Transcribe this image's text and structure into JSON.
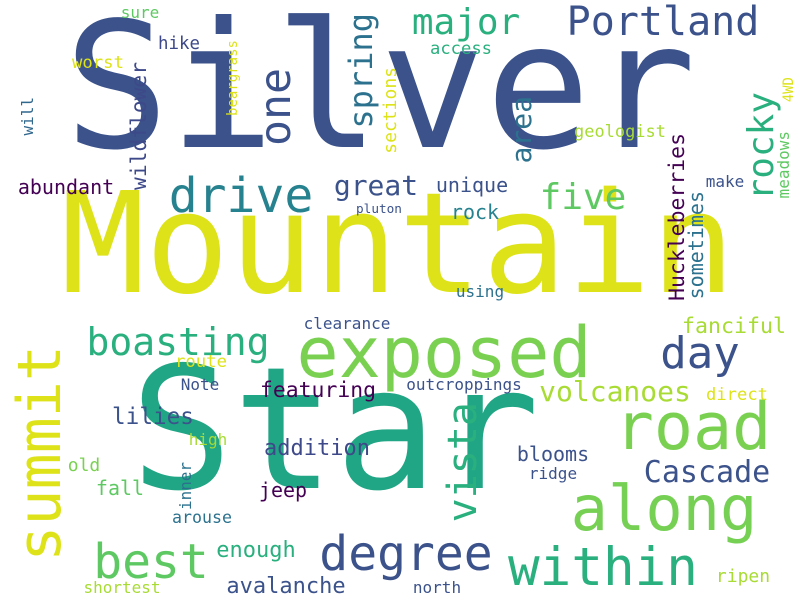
{
  "words": [
    {
      "text": "Silver",
      "color": "#3b528b",
      "orientation": "horizontal"
    },
    {
      "text": "Mountain",
      "color": "#dde318",
      "orientation": "horizontal"
    },
    {
      "text": "Star",
      "color": "#21a685",
      "orientation": "horizontal"
    },
    {
      "text": "exposed",
      "color": "#7ad151",
      "orientation": "horizontal"
    },
    {
      "text": "road",
      "color": "#7ad151",
      "orientation": "horizontal"
    },
    {
      "text": "along",
      "color": "#75d054",
      "orientation": "horizontal"
    },
    {
      "text": "summit",
      "color": "#dde318",
      "orientation": "vertical"
    },
    {
      "text": "Portland",
      "color": "#3b528b",
      "orientation": "horizontal"
    },
    {
      "text": "drive",
      "color": "#26828e",
      "orientation": "horizontal"
    },
    {
      "text": "one",
      "color": "#3b528b",
      "orientation": "vertical"
    },
    {
      "text": "major",
      "color": "#2ab07f",
      "orientation": "horizontal"
    },
    {
      "text": "five",
      "color": "#5ec962",
      "orientation": "horizontal"
    },
    {
      "text": "rocky",
      "color": "#2ab07f",
      "orientation": "vertical"
    },
    {
      "text": "day",
      "color": "#3b528b",
      "orientation": "horizontal"
    },
    {
      "text": "boasting",
      "color": "#2ab07f",
      "orientation": "horizontal"
    },
    {
      "text": "best",
      "color": "#5ec962",
      "orientation": "horizontal"
    },
    {
      "text": "degree",
      "color": "#3b528b",
      "orientation": "horizontal"
    },
    {
      "text": "within",
      "color": "#2ab07f",
      "orientation": "horizontal"
    },
    {
      "text": "Cascade",
      "color": "#3b528b",
      "orientation": "horizontal"
    },
    {
      "text": "vista",
      "color": "#2ab07f",
      "orientation": "vertical"
    },
    {
      "text": "volcanoes",
      "color": "#a8db34",
      "orientation": "horizontal"
    },
    {
      "text": "area",
      "color": "#2c728e",
      "orientation": "vertical"
    },
    {
      "text": "spring",
      "color": "#2c728e",
      "orientation": "vertical"
    },
    {
      "text": "great",
      "color": "#3b528b",
      "orientation": "horizontal"
    },
    {
      "text": "wildflower",
      "color": "#3e4989",
      "orientation": "vertical"
    },
    {
      "text": "Huckleberries",
      "color": "#440154",
      "orientation": "vertical"
    },
    {
      "text": "unique",
      "color": "#3b528b",
      "orientation": "horizontal"
    },
    {
      "text": "rock",
      "color": "#26828e",
      "orientation": "horizontal"
    },
    {
      "text": "abundant",
      "color": "#440154",
      "orientation": "horizontal"
    },
    {
      "text": "pluton",
      "color": "#3b528b",
      "orientation": "horizontal"
    },
    {
      "text": "sometimes",
      "color": "#2c728e",
      "orientation": "vertical"
    },
    {
      "text": "make",
      "color": "#3b528b",
      "orientation": "horizontal"
    },
    {
      "text": "meadows",
      "color": "#5ec962",
      "orientation": "vertical"
    },
    {
      "text": "4WD",
      "color": "#dde318",
      "orientation": "vertical"
    },
    {
      "text": "geologist",
      "color": "#a8db34",
      "orientation": "horizontal"
    },
    {
      "text": "sections",
      "color": "#dde318",
      "orientation": "vertical"
    },
    {
      "text": "beargrass",
      "color": "#dde318",
      "orientation": "vertical"
    },
    {
      "text": "access",
      "color": "#2ab07f",
      "orientation": "horizontal"
    },
    {
      "text": "hike",
      "color": "#3e4989",
      "orientation": "horizontal"
    },
    {
      "text": "sure",
      "color": "#5ec962",
      "orientation": "horizontal"
    },
    {
      "text": "worst",
      "color": "#dde318",
      "orientation": "horizontal"
    },
    {
      "text": "will",
      "color": "#31688e",
      "orientation": "vertical"
    },
    {
      "text": "using",
      "color": "#2c728e",
      "orientation": "horizontal"
    },
    {
      "text": "clearance",
      "color": "#3b528b",
      "orientation": "horizontal"
    },
    {
      "text": "fanciful",
      "color": "#a8db34",
      "orientation": "horizontal"
    },
    {
      "text": "featuring",
      "color": "#440154",
      "orientation": "horizontal"
    },
    {
      "text": "route",
      "color": "#dde318",
      "orientation": "horizontal"
    },
    {
      "text": "Note",
      "color": "#3b528b",
      "orientation": "horizontal"
    },
    {
      "text": "outcroppings",
      "color": "#3b528b",
      "orientation": "horizontal"
    },
    {
      "text": "direct",
      "color": "#dde318",
      "orientation": "horizontal"
    },
    {
      "text": "lilies",
      "color": "#3b528b",
      "orientation": "horizontal"
    },
    {
      "text": "high",
      "color": "#a8db34",
      "orientation": "horizontal"
    },
    {
      "text": "addition",
      "color": "#3e4989",
      "orientation": "horizontal"
    },
    {
      "text": "blooms",
      "color": "#3b528b",
      "orientation": "horizontal"
    },
    {
      "text": "old",
      "color": "#7ad151",
      "orientation": "horizontal"
    },
    {
      "text": "fall",
      "color": "#5ec962",
      "orientation": "horizontal"
    },
    {
      "text": "ridge",
      "color": "#3b528b",
      "orientation": "horizontal"
    },
    {
      "text": "jeep",
      "color": "#440154",
      "orientation": "horizontal"
    },
    {
      "text": "inner",
      "color": "#2c728e",
      "orientation": "vertical"
    },
    {
      "text": "arouse",
      "color": "#2c728e",
      "orientation": "horizontal"
    },
    {
      "text": "enough",
      "color": "#2ab07f",
      "orientation": "horizontal"
    },
    {
      "text": "avalanche",
      "color": "#3b528b",
      "orientation": "horizontal"
    },
    {
      "text": "shortest",
      "color": "#a8db34",
      "orientation": "horizontal"
    },
    {
      "text": "north",
      "color": "#3b528b",
      "orientation": "horizontal"
    },
    {
      "text": "ripen",
      "color": "#a8db34",
      "orientation": "horizontal"
    }
  ]
}
